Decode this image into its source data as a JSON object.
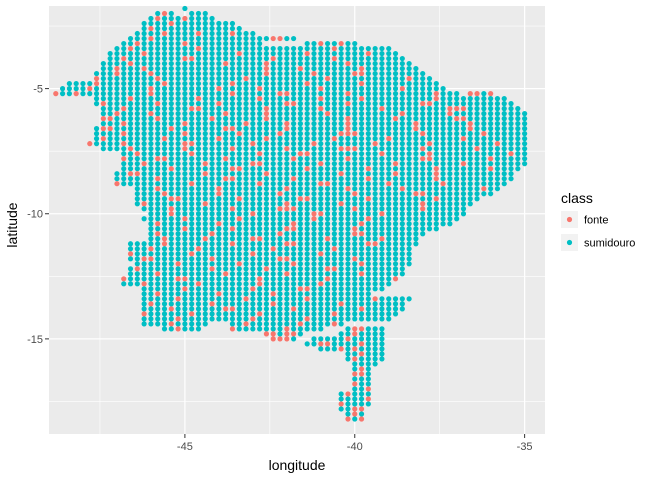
{
  "chart_data": {
    "type": "scatter",
    "xlabel": "longitude",
    "ylabel": "latitude",
    "xlim": [
      -49.0,
      -34.4
    ],
    "ylim": [
      -18.8,
      -1.7
    ],
    "x_ticks": [
      -45,
      -40,
      -35
    ],
    "x_tick_labels": [
      "-45",
      "-40",
      "-35"
    ],
    "y_ticks": [
      -5,
      -10,
      -15
    ],
    "y_tick_labels": [
      "-5",
      "-10",
      "-15"
    ],
    "grid": true,
    "panel_background": "#ebebeb",
    "legend": {
      "title": "class",
      "placement": "right",
      "entries": [
        {
          "label": "fonte",
          "color": "#F8766D"
        },
        {
          "label": "sumidouro",
          "color": "#00BFC4"
        }
      ]
    },
    "grid_step_degrees": 0.2,
    "notes_rows": "rows: [latitude, [[lon_start, lon_end, class_code_string]]], class codes: f=fonte, s=sumidouro, one code per 0.2 degree step",
    "rows": [
      [
        -1.8,
        [
          [
            -45.0,
            -45.0,
            "s"
          ]
        ]
      ],
      [
        -2.0,
        [
          [
            -45.8,
            -45.4,
            "sfs"
          ],
          [
            -44.8,
            -44.4,
            "sss"
          ]
        ]
      ],
      [
        -2.2,
        [
          [
            -46.0,
            -44.2,
            "sfsssfsss"
          ]
        ]
      ],
      [
        -2.4,
        [
          [
            -46.2,
            -43.6,
            "ssssfssssssss"
          ]
        ]
      ],
      [
        -2.6,
        [
          [
            -46.2,
            -43.4,
            "sfssssssssssss"
          ]
        ]
      ],
      [
        -2.8,
        [
          [
            -46.4,
            -43.0,
            "ssssfssssfssssfsss"
          ]
        ]
      ],
      [
        -3.0,
        [
          [
            -46.6,
            -41.8,
            "sssfsssssssssssssssssffss"
          ]
        ]
      ],
      [
        -3.2,
        [
          [
            -46.8,
            -42.8,
            "ssfssssssfsssssssssss"
          ],
          [
            -41.4,
            -40.0,
            "ssfssfss"
          ]
        ]
      ],
      [
        -3.4,
        [
          [
            -47.0,
            -39.0,
            "ssfsssssssssfsssssssssssssssssssfsssssssss"
          ]
        ]
      ],
      [
        -3.6,
        [
          [
            -47.2,
            -38.8,
            "sssssfsssssssssssssfsssssssssfssssssssfssssss"
          ]
        ]
      ],
      [
        -3.8,
        [
          [
            -47.2,
            -38.6,
            "ssfssssssssffsssssssssssfssssssssfssssssssssss"
          ]
        ]
      ],
      [
        -4.0,
        [
          [
            -47.4,
            -38.4,
            "ssssfsssssssssssssfsssssfsssssssssssfssssssssss"
          ]
        ]
      ],
      [
        -4.2,
        [
          [
            -47.4,
            -38.2,
            "ssfsssfsssssssssssssssssfssssfssssssssfsssssssss"
          ]
        ]
      ],
      [
        -4.4,
        [
          [
            -47.6,
            -38.0,
            "sssfssssfssssssssssssssssfssssssfsssssffssssssssss"
          ]
        ]
      ],
      [
        -4.6,
        [
          [
            -47.6,
            -37.8,
            "fssssssssfssssssssssssfsssssssssssfsssssssssssfsssss"
          ]
        ]
      ],
      [
        -4.8,
        [
          [
            -48.4,
            -37.6,
            "ssssfsssssssssfsssssssssfssssssssssfsssssssfssssssssssss"
          ]
        ]
      ],
      [
        -5.0,
        [
          [
            -48.6,
            -37.4,
            "ssssfssssssssfsssssssssfsssssfssssssssfsssssssssssfsssssss"
          ]
        ]
      ],
      [
        -5.2,
        [
          [
            -48.8,
            -37.0,
            "fssfssssssssssfsssssssssssfssssssffssssssssfssssssssssssfsss"
          ],
          [
            -36.6,
            -36.0,
            "ffsf"
          ]
        ]
      ],
      [
        -5.4,
        [
          [
            -47.6,
            -35.6,
            "sssssfsssssssssfssssssssfssssssssfsssssfssssssssssfsssssssssss"
          ]
        ]
      ],
      [
        -5.6,
        [
          [
            -47.6,
            -35.4,
            "sfsssssssfssssssssfsssssssssffsssssssfssssssssssffssssssssssss"
          ]
        ]
      ],
      [
        -5.8,
        [
          [
            -47.4,
            -35.2,
            "sssfsssssssssffsssssssssfsssssssfssssssssfsssssssssfffsssssss"
          ]
        ]
      ],
      [
        -6.0,
        [
          [
            -47.4,
            -35.0,
            "ssfssssfssssssssssfsssssfssssssssfssssssssssfssssssfsssssssssss"
          ]
        ]
      ],
      [
        -6.2,
        [
          [
            -47.4,
            -35.0,
            "ffssssssfsssssssfsssssssfsssssssssssfssssssfssssssssffssssssssss"
          ]
        ]
      ],
      [
        -6.4,
        [
          [
            -47.4,
            -35.0,
            "sssfssssssssfssssssssfsssssfssssssssfsssssssssfsssssssfsssssssss"
          ]
        ]
      ],
      [
        -6.6,
        [
          [
            -47.6,
            -35.0,
            "sffssssssssfsssssssffsssssssfssssssssfsssssssssfsssssssfsssssssss"
          ]
        ]
      ],
      [
        -6.8,
        [
          [
            -47.6,
            -35.0,
            "ssssfssssssssfsssssssfsssssfssssssssfffsssssssssfssssssssfssssssss"
          ]
        ]
      ],
      [
        -7.0,
        [
          [
            -47.6,
            -35.0,
            "sfssssssssfsssssssfssssssfsssssssssfsssssssfssssssssssfsssssssssss"
          ]
        ]
      ],
      [
        -7.2,
        [
          [
            -47.8,
            -35.0,
            "fssssfssssssssffssssssssfssssssssfssssssssfsssssssfsssssssssfsssssss"
          ]
        ]
      ],
      [
        -7.4,
        [
          [
            -47.4,
            -35.0,
            "ssssfsssssssfssssssfsssssssfsssssssfffsssssssssfsssssssfssssssssss"
          ]
        ]
      ],
      [
        -7.6,
        [
          [
            -46.8,
            -35.0,
            "ssfsssssssfsssssssssfsssssffssssssssssfssssssfsssssssssssfsssss"
          ]
        ]
      ],
      [
        -7.8,
        [
          [
            -46.8,
            -35.0,
            "fssssffssssssssfsssssssssfsssssssfssssssssssffssssssssfsssssssss"
          ]
        ]
      ],
      [
        -8.0,
        [
          [
            -46.8,
            -35.0,
            "sssfssssssssfssssssffssssssssfssssssssssfsssssssssfssssssssssssf"
          ]
        ]
      ],
      [
        -8.2,
        [
          [
            -46.8,
            -35.2,
            "sssssssfssssssssffsssssssssfssssssssfsssssssssfsssssssfssssssss"
          ]
        ]
      ],
      [
        -8.4,
        [
          [
            -47.0,
            -35.4,
            "ssffsssssssssfssssssssfssssssssssfsssssssfsssssfssssssssssssss"
          ]
        ]
      ],
      [
        -8.6,
        [
          [
            -47.0,
            -35.4,
            "ssssssfsssssssssffssssssssfssssssssssfsssssssssfsssssssssssssf"
          ]
        ]
      ],
      [
        -8.8,
        [
          [
            -47.0,
            -35.6,
            "fssssssssssfsssssssssfssssssssffssssssssfsssssssfssssssssssss"
          ]
        ]
      ],
      [
        -9.0,
        [
          [
            -46.4,
            -35.8,
            "sssfssssssssfsssssssssfssssssssfsssssssfsssssssssssfssss"
          ]
        ]
      ],
      [
        -9.2,
        [
          [
            -46.4,
            -36.0,
            "ssssfsssssssfssssssssfssssssssssfssssssssffssssssssss"
          ]
        ]
      ],
      [
        -9.4,
        [
          [
            -46.4,
            -36.4,
            "sssssffssssssssfssssssssffssssssssfsssssssssfss"
          ]
        ]
      ],
      [
        -9.6,
        [
          [
            -46.4,
            -36.6,
            "sfssssssssfsssssssssssfsssssssfsssssssssssfss"
          ]
        ]
      ],
      [
        -9.8,
        [
          [
            -46.2,
            -36.8,
            "ssssfssssssssfssssssfffssssssssfsssssssssfss"
          ]
        ]
      ],
      [
        -10.0,
        [
          [
            -46.0,
            -36.8,
            "sssfsssssssssssfssssssssffssssssssfsssssssss"
          ]
        ]
      ],
      [
        -10.2,
        [
          [
            -46.2,
            -37.0,
            "ssssssfsssssssfssssssssssfsssssssfsssssssss"
          ]
        ]
      ],
      [
        -10.4,
        [
          [
            -46.0,
            -37.2,
            "sfssssssssfssssssssssfsssssssssfsssssssss"
          ]
        ]
      ],
      [
        -10.6,
        [
          [
            -46.0,
            -37.6,
            "sssssfssssssfsssssssffssssssssfsssssss"
          ]
        ]
      ],
      [
        -10.8,
        [
          [
            -46.0,
            -38.0,
            "sfsssssssfsssssssssfssssssssssffsss"
          ]
        ]
      ],
      [
        -11.0,
        [
          [
            -46.0,
            -38.2,
            "ssfsssssfssssssffsssssssssfsssssssf"
          ]
        ]
      ],
      [
        -11.2,
        [
          [
            -46.6,
            -38.2,
            "sssssfsssssssssfsssssssffssssssssssff"
          ]
        ]
      ],
      [
        -11.4,
        [
          [
            -46.6,
            -38.4,
            "sssfssssssfssssssssssfssssssssfsssssss"
          ]
        ]
      ],
      [
        -11.6,
        [
          [
            -46.6,
            -38.4,
            "fssssssssfssssssssfsssssssssfssssssssss"
          ]
        ]
      ],
      [
        -11.8,
        [
          [
            -46.6,
            -38.4,
            "ssffssssssssfsssssssssffsssssssssfsssss"
          ]
        ]
      ],
      [
        -12.0,
        [
          [
            -46.4,
            -38.4,
            "ssssssfssssssssfsssssssfsssssssssfssssss"
          ]
        ]
      ],
      [
        -12.2,
        [
          [
            -46.6,
            -38.6,
            "sfssssssssssfsssssssfssssssssffsssssssss"
          ]
        ]
      ],
      [
        -12.4,
        [
          [
            -46.6,
            -38.6,
            "ssssfsssssssssfssssssssfssssssssssfssss"
          ]
        ]
      ],
      [
        -12.6,
        [
          [
            -46.8,
            -38.8,
            "fsssssssffssssssssssfsssssssssfsssssssssf"
          ]
        ]
      ],
      [
        -12.8,
        [
          [
            -46.8,
            -39.0,
            "sssfsssssssfssssssssfssssssssfsssssssss"
          ]
        ]
      ],
      [
        -13.0,
        [
          [
            -46.2,
            -39.2,
            "ssssssfsssssssssfssssssffsssssssss"
          ]
        ]
      ],
      [
        -13.2,
        [
          [
            -46.2,
            -39.6,
            "ssfssssssssfsssssssfssssssssss"
          ]
        ]
      ],
      [
        -13.4,
        [
          [
            -46.2,
            -38.4,
            "sssssfsssssssssfssssssssfsssssssssfssss"
          ]
        ]
      ],
      [
        -13.6,
        [
          [
            -46.2,
            -38.6,
            "sfssssssssfssssssssfsssssssssfssssssss"
          ]
        ]
      ],
      [
        -13.8,
        [
          [
            -46.2,
            -38.6,
            "ssssfsssssssffssssssssfsssssssssfsssss"
          ]
        ]
      ],
      [
        -14.0,
        [
          [
            -46.2,
            -38.8,
            "fssssssfsssssssssfssssssssssfsssssss"
          ]
        ]
      ],
      [
        -14.2,
        [
          [
            -46.2,
            -39.0,
            "sssssfssssssssssfsssssssfsssssssss"
          ]
        ]
      ],
      [
        -14.4,
        [
          [
            -46.2,
            -44.4,
            "ssssfssss"
          ],
          [
            -43.6,
            -40.4,
            "ssfsssssssfssssfs"
          ]
        ]
      ],
      [
        -14.6,
        [
          [
            -45.6,
            -44.6,
            "ssfss"
          ],
          [
            -43.6,
            -41.0,
            "fsssssssfsssss"
          ],
          [
            -40.2,
            -39.2,
            "sffss"
          ]
        ]
      ],
      [
        -14.8,
        [
          [
            -42.6,
            -41.6,
            "ffsff"
          ],
          [
            -40.4,
            -39.2,
            "ssfsss"
          ]
        ]
      ],
      [
        -15.0,
        [
          [
            -42.4,
            -41.8,
            "fff"
          ],
          [
            -41.2,
            -39.2,
            "sssssfsssss"
          ]
        ]
      ],
      [
        -15.2,
        [
          [
            -41.4,
            -39.2,
            "ssffssssfsss"
          ]
        ]
      ],
      [
        -15.4,
        [
          [
            -41.0,
            -39.2,
            "sssfsfssss"
          ]
        ]
      ],
      [
        -15.6,
        [
          [
            -40.2,
            -39.2,
            "ssfss"
          ]
        ]
      ],
      [
        -15.8,
        [
          [
            -40.2,
            -39.2,
            "sfsss"
          ]
        ]
      ],
      [
        -16.0,
        [
          [
            -40.0,
            -39.4,
            "ssss"
          ]
        ]
      ],
      [
        -16.2,
        [
          [
            -40.0,
            -39.6,
            "sfs"
          ]
        ]
      ],
      [
        -16.4,
        [
          [
            -40.0,
            -39.6,
            "ffs"
          ]
        ]
      ],
      [
        -16.6,
        [
          [
            -40.0,
            -39.6,
            "sss"
          ]
        ]
      ],
      [
        -16.8,
        [
          [
            -40.0,
            -39.6,
            "fss"
          ]
        ]
      ],
      [
        -17.0,
        [
          [
            -40.0,
            -39.6,
            "ssf"
          ]
        ]
      ],
      [
        -17.2,
        [
          [
            -40.4,
            -39.6,
            "sfsss"
          ]
        ]
      ],
      [
        -17.4,
        [
          [
            -40.4,
            -39.6,
            "ssssf"
          ]
        ]
      ],
      [
        -17.6,
        [
          [
            -40.4,
            -39.6,
            "fssss"
          ]
        ]
      ],
      [
        -17.8,
        [
          [
            -40.4,
            -39.8,
            "ssff"
          ]
        ]
      ],
      [
        -18.0,
        [
          [
            -40.2,
            -39.8,
            "sfs"
          ]
        ]
      ],
      [
        -18.2,
        [
          [
            -40.2,
            -39.8,
            "fsf"
          ]
        ]
      ]
    ]
  }
}
